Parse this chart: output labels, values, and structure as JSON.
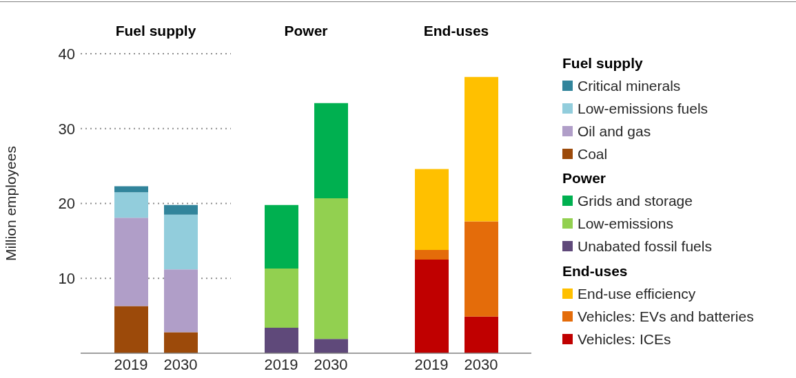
{
  "chart_data": [
    {
      "type": "bar",
      "stacked": true,
      "title": "Fuel supply",
      "ylabel": "Million employees",
      "legend_title": "Fuel supply",
      "legend": "right",
      "grid": "y",
      "categories": [
        "2019",
        "2030"
      ],
      "ylim": [
        0,
        40
      ],
      "yticks": [
        10,
        20,
        30,
        40
      ],
      "series": [
        {
          "name": "Coal",
          "color": "#9c4a0a",
          "values": [
            6.3,
            2.8
          ]
        },
        {
          "name": "Oil and gas",
          "color": "#b09ec8",
          "values": [
            11.8,
            8.4
          ]
        },
        {
          "name": "Low-emissions fuels",
          "color": "#92cddc",
          "values": [
            3.4,
            7.3
          ]
        },
        {
          "name": "Critical minerals",
          "color": "#31849b",
          "values": [
            0.8,
            1.3
          ]
        }
      ]
    },
    {
      "type": "bar",
      "stacked": true,
      "title": "Power",
      "legend_title": "Power",
      "legend": "right",
      "grid": "y",
      "tick_labels": "x",
      "categories": [
        "2019",
        "2030"
      ],
      "ylim": [
        0,
        40
      ],
      "yticks": [
        10,
        20,
        30,
        40
      ],
      "series": [
        {
          "name": "Unabated fossil fuels",
          "color": "#5f497a",
          "values": [
            3.4,
            1.9
          ]
        },
        {
          "name": "Low-emissions",
          "color": "#92d050",
          "values": [
            7.9,
            18.8
          ]
        },
        {
          "name": "Grids and storage",
          "color": "#00b050",
          "values": [
            8.5,
            12.7
          ]
        }
      ]
    },
    {
      "type": "bar",
      "stacked": true,
      "title": "End-uses",
      "legend_title": "End-uses",
      "legend": "right",
      "grid": "y",
      "tick_labels": "x",
      "categories": [
        "2019",
        "2030"
      ],
      "ylim": [
        0,
        40
      ],
      "yticks": [
        10,
        20,
        30,
        40
      ],
      "series": [
        {
          "name": "Vehicles: ICEs",
          "color": "#c00000",
          "values": [
            12.5,
            4.9
          ]
        },
        {
          "name": "Vehicles: EVs and batteries",
          "color": "#e46c0a",
          "values": [
            1.3,
            12.7
          ]
        },
        {
          "name": "End-use efficiency",
          "color": "#ffc000",
          "values": [
            10.8,
            19.3
          ]
        }
      ]
    }
  ]
}
